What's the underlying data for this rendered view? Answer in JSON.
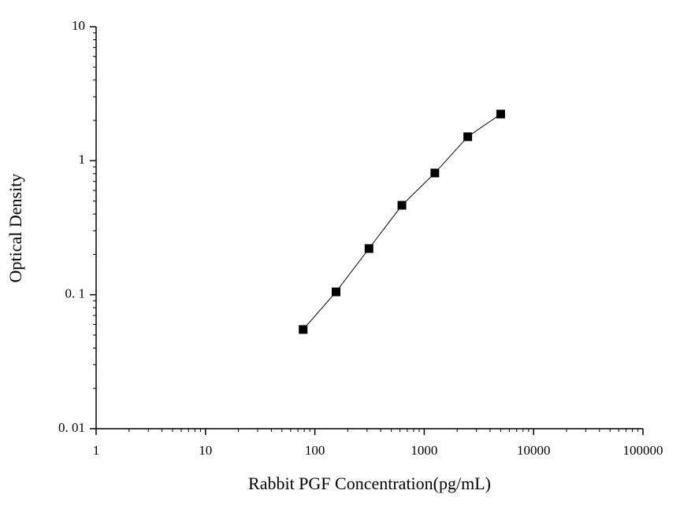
{
  "chart_data": {
    "type": "line",
    "x_label": "Rabbit PGF Concentration(pg/mL)",
    "y_label": "Optical Density",
    "x": [
      78.125,
      156.25,
      312.5,
      625,
      1250,
      2500,
      5000
    ],
    "values": [
      0.055,
      0.105,
      0.221,
      0.465,
      0.81,
      1.51,
      2.23
    ],
    "color": "#000000",
    "marker": "square",
    "xscale": "log",
    "yscale": "log",
    "xlim": [
      1,
      100000
    ],
    "xticks": [
      1,
      10,
      100,
      1000,
      10000,
      100000
    ],
    "ylim": [
      0.01,
      10
    ],
    "yticks": [
      {
        "value": 0.01,
        "label": "0. 01"
      },
      {
        "value": 0.1,
        "label": "0. 1"
      },
      1,
      10
    ]
  }
}
